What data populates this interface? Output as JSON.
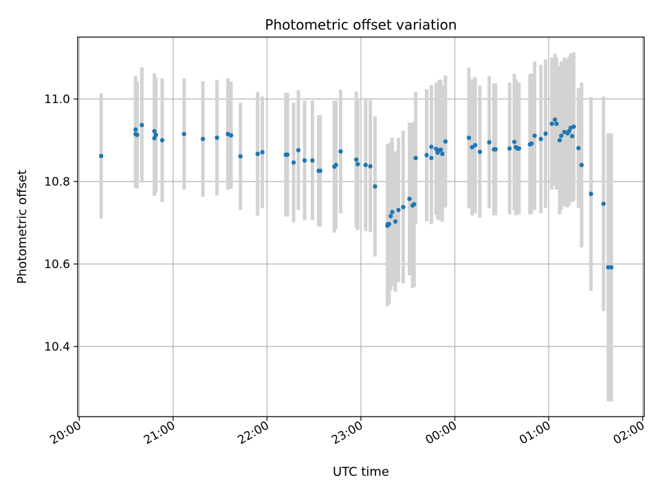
{
  "chart_data": {
    "type": "scatter",
    "title": "Photometric offset variation",
    "xlabel": "UTC time",
    "ylabel": "Photometric offset",
    "x_tick_labels": [
      "20:00",
      "21:00",
      "22:00",
      "23:00",
      "00:00",
      "01:00",
      "02:00"
    ],
    "y_tick_labels": [
      "10.4",
      "10.6",
      "10.8",
      "11.0"
    ],
    "y_ticks": [
      10.4,
      10.6,
      10.8,
      11.0
    ],
    "xlim": [
      "19:59",
      "02:01"
    ],
    "ylim": [
      10.23,
      11.15
    ],
    "grid": true,
    "series": [
      {
        "marker": "point",
        "errorbars": true,
        "x": [
          "20:14",
          "20:36",
          "20:36",
          "20:37",
          "20:40",
          "20:48",
          "20:48",
          "20:49",
          "20:53",
          "21:07",
          "21:19",
          "21:28",
          "21:35",
          "21:37",
          "21:43",
          "21:54",
          "21:57",
          "22:12",
          "22:13",
          "22:17",
          "22:20",
          "22:24",
          "22:29",
          "22:33",
          "22:34",
          "22:43",
          "22:44",
          "22:47",
          "22:57",
          "22:58",
          "23:03",
          "23:06",
          "23:09",
          "23:17",
          "23:17",
          "23:18",
          "23:19",
          "23:20",
          "23:22",
          "23:24",
          "23:27",
          "23:31",
          "23:33",
          "23:34",
          "23:35",
          "23:42",
          "23:45",
          "23:45",
          "23:48",
          "23:49",
          "23:50",
          "23:51",
          "23:52",
          "23:54",
          "24:09",
          "24:11",
          "24:13",
          "24:16",
          "24:22",
          "24:25",
          "24:26",
          "24:35",
          "24:38",
          "24:39",
          "24:40",
          "24:41",
          "24:48",
          "24:49",
          "24:51",
          "24:55",
          "24:58",
          "25:02",
          "25:04",
          "25:05",
          "25:07",
          "25:08",
          "25:10",
          "25:12",
          "25:13",
          "25:14",
          "25:15",
          "25:16",
          "25:19",
          "25:21",
          "25:27",
          "25:35",
          "25:38",
          "25:40"
        ],
        "y": [
          10.862,
          10.926,
          10.915,
          10.913,
          10.937,
          10.905,
          10.922,
          10.913,
          10.9,
          10.915,
          10.903,
          10.906,
          10.915,
          10.912,
          10.861,
          10.867,
          10.871,
          10.865,
          10.865,
          10.846,
          10.876,
          10.851,
          10.851,
          10.826,
          10.826,
          10.836,
          10.84,
          10.873,
          10.853,
          10.842,
          10.84,
          10.837,
          10.788,
          10.693,
          10.696,
          10.697,
          10.716,
          10.726,
          10.703,
          10.731,
          10.738,
          10.758,
          10.742,
          10.745,
          10.857,
          10.864,
          10.857,
          10.884,
          10.879,
          10.87,
          10.876,
          10.877,
          10.867,
          10.897,
          10.906,
          10.883,
          10.888,
          10.872,
          10.895,
          10.878,
          10.878,
          10.88,
          10.896,
          10.883,
          10.88,
          10.88,
          10.89,
          10.892,
          10.911,
          10.903,
          10.916,
          10.94,
          10.95,
          10.94,
          10.9,
          10.911,
          10.92,
          10.917,
          10.922,
          10.93,
          10.91,
          10.933,
          10.881,
          10.84,
          10.77,
          10.746,
          10.592,
          10.592
        ],
        "yerr": [
          0.152,
          0.13,
          0.13,
          0.13,
          0.14,
          0.14,
          0.14,
          0.14,
          0.15,
          0.135,
          0.14,
          0.14,
          0.135,
          0.13,
          0.13,
          0.15,
          0.135,
          0.15,
          0.15,
          0.145,
          0.145,
          0.145,
          0.145,
          0.135,
          0.135,
          0.16,
          0.155,
          0.15,
          0.165,
          0.16,
          0.16,
          0.16,
          0.17,
          0.195,
          0.195,
          0.195,
          0.18,
          0.18,
          0.17,
          0.175,
          0.185,
          0.185,
          0.2,
          0.2,
          0.16,
          0.16,
          0.16,
          0.15,
          0.16,
          0.16,
          0.17,
          0.17,
          0.165,
          0.16,
          0.17,
          0.165,
          0.165,
          0.16,
          0.16,
          0.16,
          0.16,
          0.16,
          0.165,
          0.165,
          0.16,
          0.16,
          0.17,
          0.17,
          0.18,
          0.18,
          0.18,
          0.16,
          0.16,
          0.16,
          0.18,
          0.18,
          0.18,
          0.18,
          0.18,
          0.18,
          0.16,
          0.18,
          0.145,
          0.2,
          0.235,
          0.26,
          0.325,
          0.325
        ]
      }
    ],
    "colors": {
      "points": "#1f77b4",
      "errorbars": "#d3d3d3",
      "grid": "#b0b0b0"
    }
  }
}
